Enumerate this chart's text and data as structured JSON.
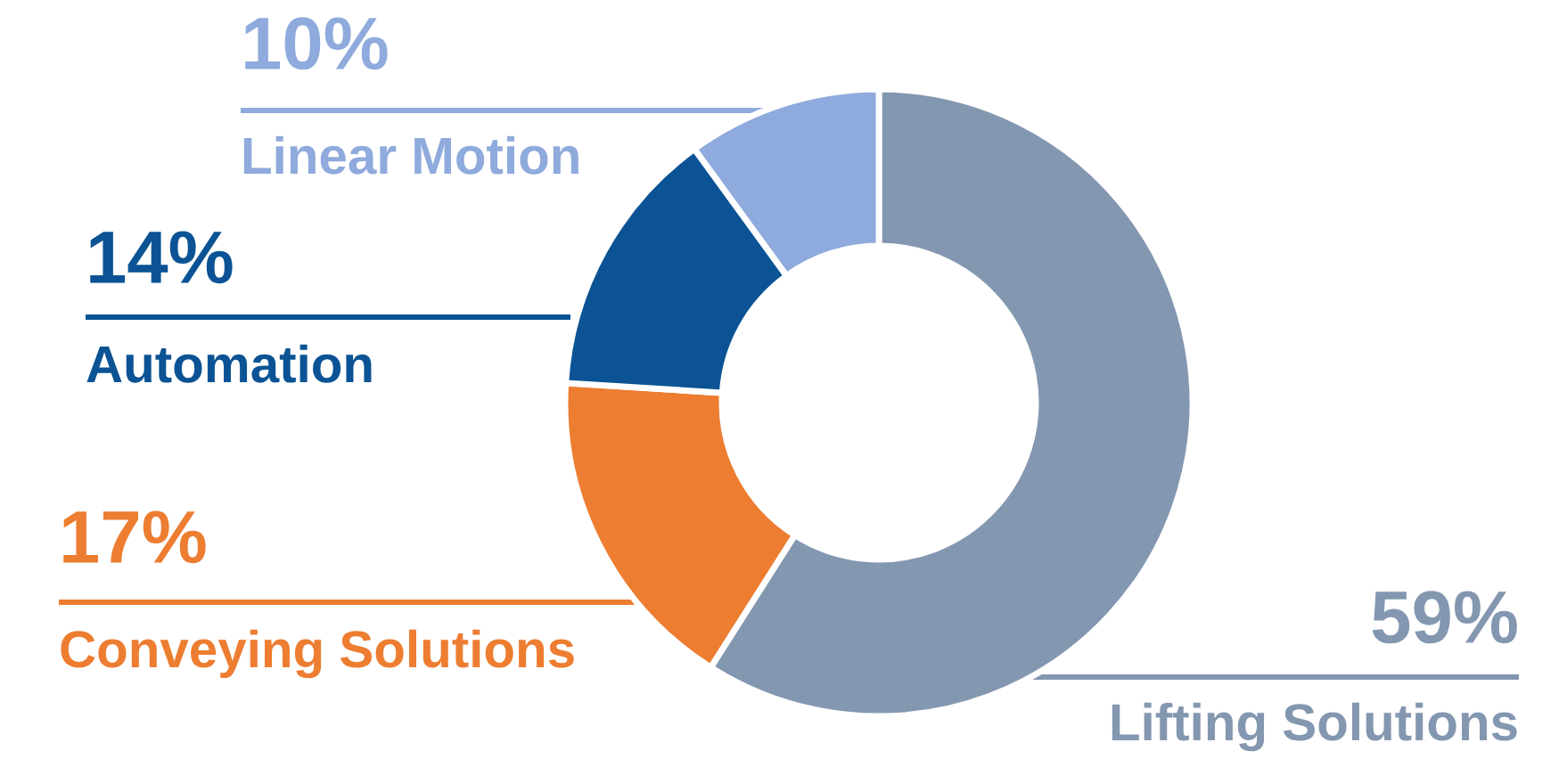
{
  "chart_data": {
    "type": "donut",
    "categories": [
      "Lifting Solutions",
      "Conveying Solutions",
      "Automation",
      "Linear Motion"
    ],
    "values": [
      59,
      17,
      14,
      10
    ],
    "colors": [
      "#8497b0",
      "#ed7d31",
      "#0b5394",
      "#8faadc"
    ],
    "value_labels": [
      "59%",
      "17%",
      "14%",
      "10%"
    ]
  }
}
